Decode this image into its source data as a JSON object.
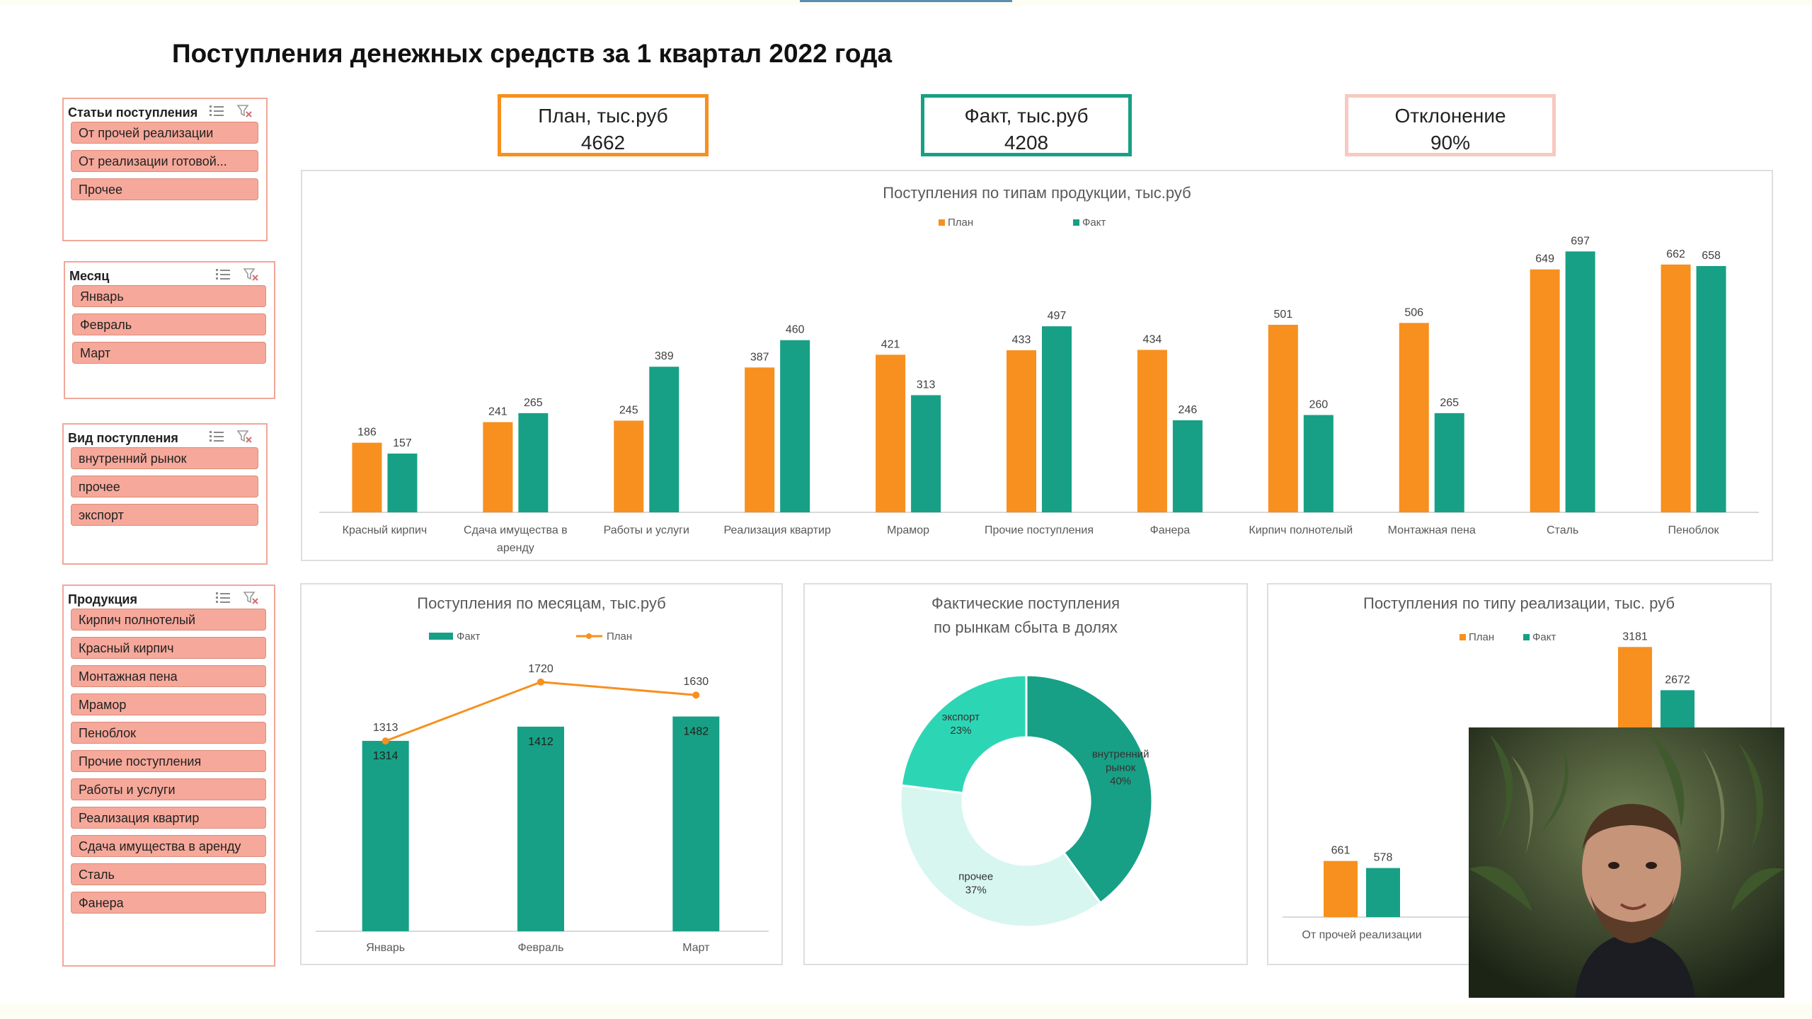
{
  "title": "Поступления денежных средств за 1 квартал 2022 года",
  "colors": {
    "plan": "#f7901e",
    "fact": "#17a085",
    "deviation_border": "#f7c9c0",
    "slicer_fill": "#f6a89a"
  },
  "kpis": [
    {
      "label": "План, тыс.руб",
      "value": "4662",
      "border": "#f7901e"
    },
    {
      "label": "Факт, тыс.руб",
      "value": "4208",
      "border": "#17a085"
    },
    {
      "label": "Отклонение",
      "value": "90%",
      "border": "#f7c9c0"
    }
  ],
  "slicers": {
    "articles": {
      "title": "Статьи поступления",
      "items": [
        "От прочей реализации",
        "От реализации готовой...",
        "Прочее"
      ]
    },
    "month": {
      "title": "Месяц",
      "items": [
        "Январь",
        "Февраль",
        "Март"
      ]
    },
    "kind": {
      "title": "Вид поступления",
      "items": [
        "внутренний рынок",
        "прочее",
        "экспорт"
      ]
    },
    "products": {
      "title": "Продукция",
      "items": [
        "Кирпич полнотелый",
        "Красный кирпич",
        "Монтажная пена",
        "Мрамор",
        "Пеноблок",
        "Прочие поступления",
        "Работы и услуги",
        "Реализация квартир",
        "Сдача имущества в аренду",
        "Сталь",
        "Фанера"
      ]
    }
  },
  "chart_data": [
    {
      "type": "bar",
      "title": "Поступления по типам продукции, тыс.руб",
      "categories": [
        "Красный кирпич",
        "Сдача имущества в аренду",
        "Работы и услуги",
        "Реализация квартир",
        "Мрамор",
        "Прочие поступления",
        "Фанера",
        "Кирпич полнотелый",
        "Монтажная пена",
        "Сталь",
        "Пеноблок"
      ],
      "series": [
        {
          "name": "План",
          "values": [
            186,
            241,
            245,
            387,
            421,
            433,
            434,
            501,
            506,
            649,
            662
          ]
        },
        {
          "name": "Факт",
          "values": [
            157,
            265,
            389,
            460,
            313,
            497,
            246,
            260,
            265,
            697,
            658
          ]
        }
      ],
      "legend": "top-center",
      "ylim": [
        0,
        760
      ]
    },
    {
      "type": "bar",
      "title": "Поступления по месяцам, тыс.руб",
      "categories": [
        "Январь",
        "Февраль",
        "Март"
      ],
      "series": [
        {
          "name": "Факт",
          "values": [
            1314,
            1412,
            1482
          ],
          "kind": "bar"
        },
        {
          "name": "План",
          "values": [
            1313,
            1720,
            1630
          ],
          "kind": "line"
        }
      ],
      "legend": "top-center",
      "ylim": [
        0,
        2100
      ]
    },
    {
      "type": "pie",
      "title": "Фактические поступления по рынкам сбыта в долях",
      "labels": [
        "внутренний рынок",
        "прочее",
        "экспорт"
      ],
      "values": [
        40,
        37,
        23
      ],
      "value_labels": [
        "40%",
        "37%",
        "23%"
      ],
      "colors": [
        "#17a085",
        "#d8f6f0",
        "#2cd6b5"
      ]
    },
    {
      "type": "bar",
      "title": "Поступления по типу реализации, тыс. руб",
      "categories": [
        "От прочей реализации",
        "От реализации готовой..."
      ],
      "series": [
        {
          "name": "План",
          "values": [
            661,
            3181
          ]
        },
        {
          "name": "Факт",
          "values": [
            578,
            2672
          ]
        }
      ],
      "legend": "top-center",
      "ylim": [
        0,
        3500
      ]
    }
  ]
}
